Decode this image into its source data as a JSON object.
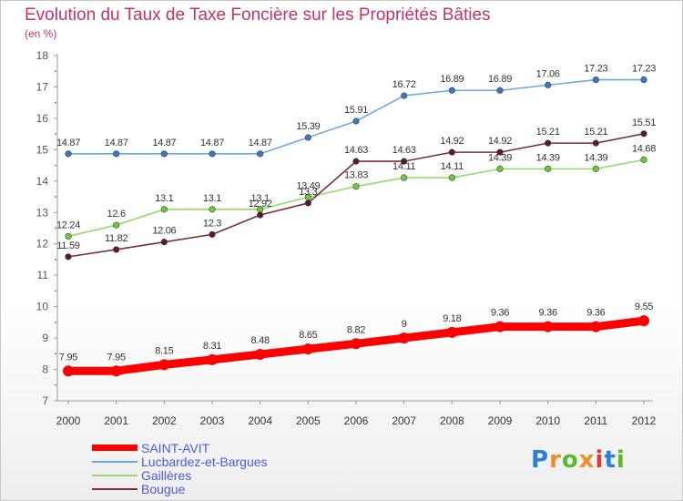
{
  "chart_data": {
    "type": "line",
    "title": "Evolution du Taux de Taxe Foncière sur les Propriétés Bâties",
    "subtitle": "(en %)",
    "xlabel": "",
    "ylabel": "",
    "x": [
      "2000",
      "2001",
      "2002",
      "2003",
      "2004",
      "2005",
      "2006",
      "2007",
      "2008",
      "2009",
      "2010",
      "2011",
      "2012"
    ],
    "ylim": [
      7,
      18
    ],
    "yticks": [
      "7",
      "8",
      "9",
      "10",
      "11",
      "12",
      "13",
      "14",
      "15",
      "16",
      "17",
      "18"
    ],
    "grid": false,
    "legend": "bottom-left",
    "series": [
      {
        "name": "Lucbardez-et-Bargues",
        "color": "#6fa8dc",
        "marker": "#3a78c0",
        "values": [
          14.87,
          14.87,
          14.87,
          14.87,
          14.87,
          15.39,
          15.91,
          16.72,
          16.89,
          16.89,
          17.06,
          17.23,
          17.23
        ],
        "labels": [
          "14.87",
          "14.87",
          "14.87",
          "14.87",
          "14.87",
          "15.39",
          "15.91",
          "16.72",
          "16.89",
          "16.89",
          "17.06",
          "17.23",
          "17.23"
        ]
      },
      {
        "name": "Gaillères",
        "color": "#93d96c",
        "marker": "#6cc93a",
        "values": [
          12.24,
          12.6,
          13.1,
          13.1,
          13.1,
          13.49,
          13.83,
          14.11,
          14.11,
          14.39,
          14.39,
          14.39,
          14.68
        ],
        "labels": [
          "12.24",
          "12.6",
          "13.1",
          "13.1",
          "13.1",
          "13.49",
          "13.83",
          "14.11",
          "14.11",
          "14.39",
          "14.39",
          "14.39",
          "14.68"
        ]
      },
      {
        "name": "Bougue",
        "color": "#7b2c3a",
        "marker": "#5a1a28",
        "values": [
          11.59,
          11.82,
          12.06,
          12.3,
          12.92,
          13.3,
          14.63,
          14.63,
          14.92,
          14.92,
          15.21,
          15.21,
          15.51
        ],
        "labels": [
          "11.59",
          "11.82",
          "12.06",
          "12.3",
          "12.92",
          "13.3",
          "14.63",
          "14.63",
          "14.92",
          "14.92",
          "15.21",
          "15.21",
          "15.51"
        ]
      },
      {
        "name": "SAINT-AVIT",
        "color": "#ff0000",
        "marker": "#ff0000",
        "values": [
          7.95,
          7.95,
          8.15,
          8.31,
          8.48,
          8.65,
          8.82,
          9.0,
          9.18,
          9.36,
          9.36,
          9.36,
          9.55
        ],
        "labels": [
          "7.95",
          "7.95",
          "8.15",
          "8.31",
          "8.48",
          "8.65",
          "8.82",
          "9",
          "9.18",
          "9.36",
          "9.36",
          "9.36",
          "9.55"
        ]
      }
    ]
  },
  "legend": {
    "items": [
      {
        "label": "SAINT-AVIT",
        "color": "#ff0000",
        "thick": true
      },
      {
        "label": "Lucbardez-et-Bargues",
        "color": "#6fa8dc",
        "thick": false
      },
      {
        "label": "Gaillères",
        "color": "#93d96c",
        "thick": false
      },
      {
        "label": "Bougue",
        "color": "#7b2c3a",
        "thick": false
      }
    ]
  },
  "logo": {
    "letters": [
      "P",
      "r",
      "o",
      "x",
      "i",
      "t",
      "i"
    ],
    "colors": [
      "#2b7fd4",
      "#e8902a",
      "#5cb82e",
      "#e8902a",
      "#d93a3a",
      "#2b7fd4",
      "#5cb82e"
    ]
  }
}
